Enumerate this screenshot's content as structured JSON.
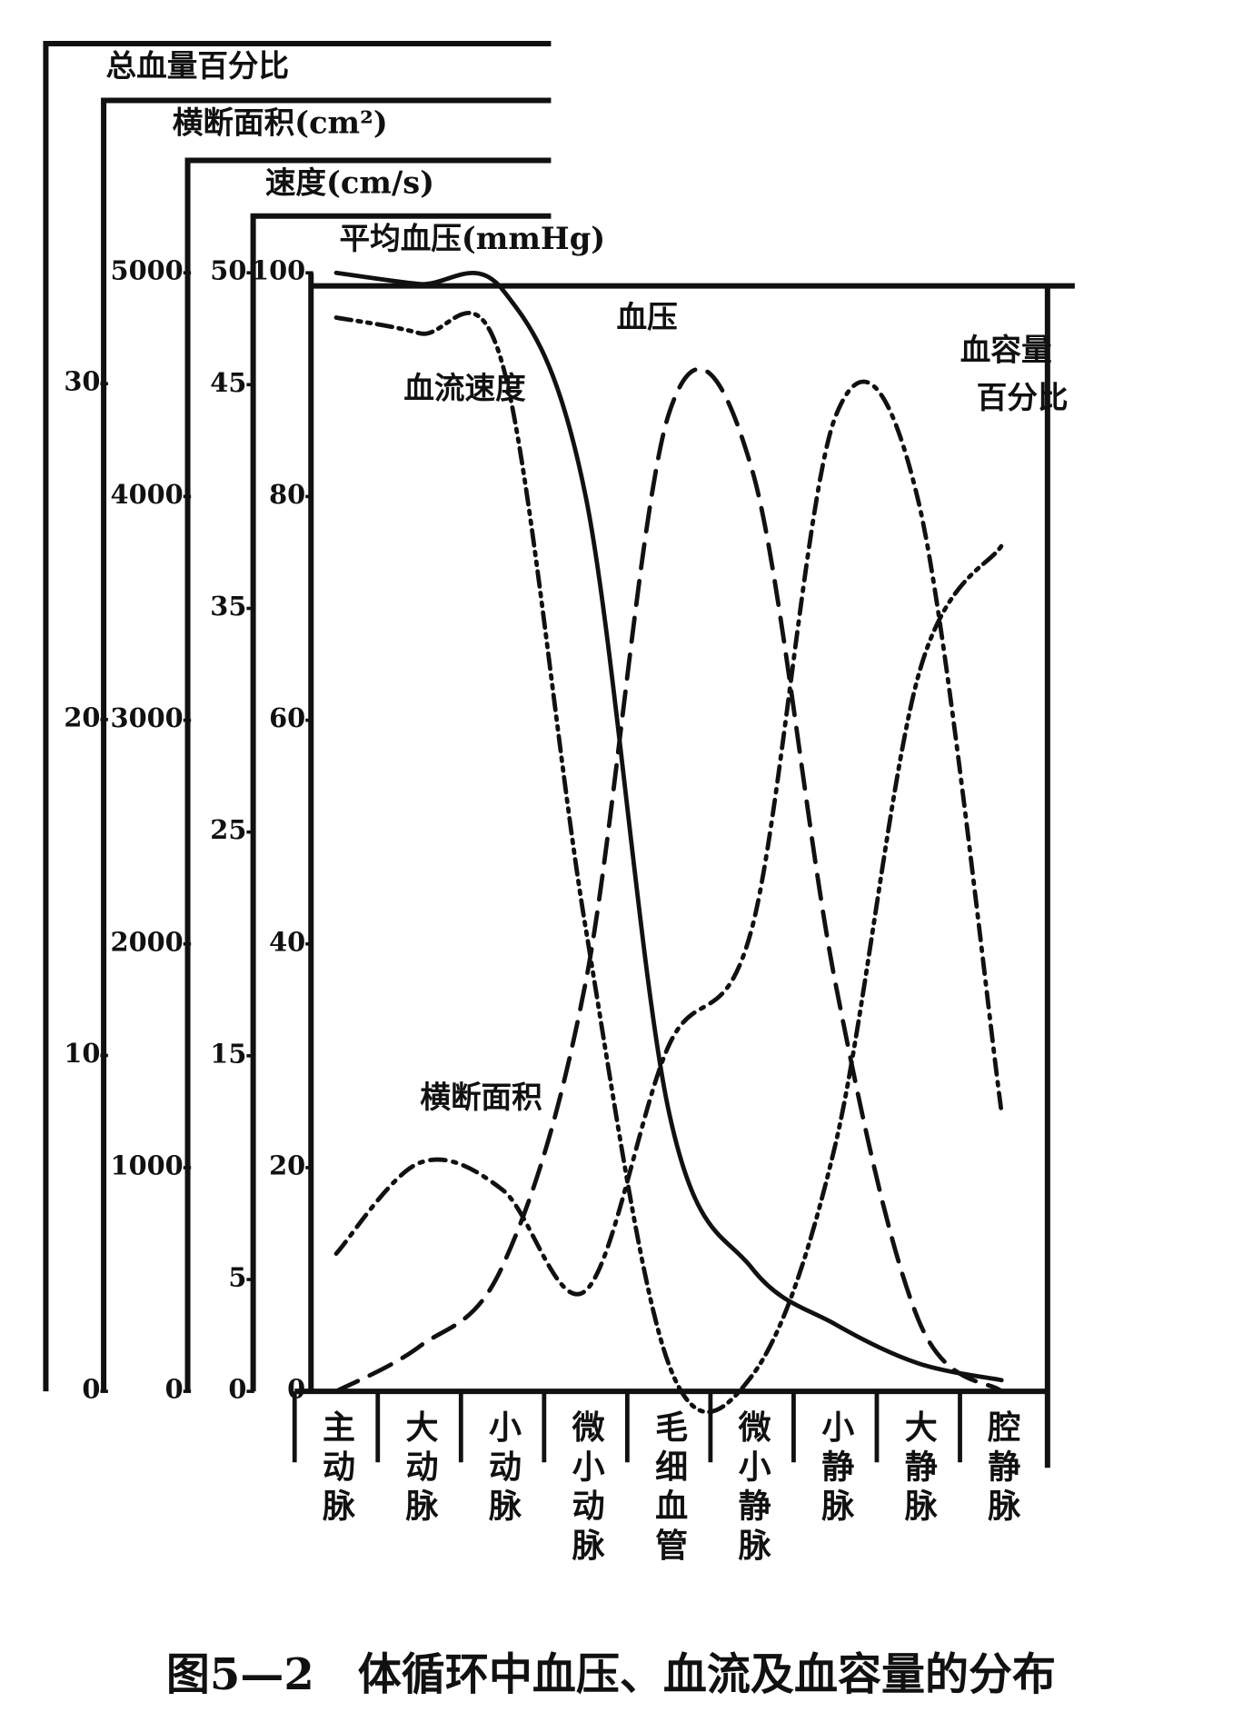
{
  "chart_data": {
    "type": "line",
    "caption": "图5—2　体循环中血压、血流及血容量的分布",
    "categories": [
      "主动脉",
      "大动脉",
      "小动脉",
      "微小动脉",
      "毛细血管",
      "微小静脉",
      "小静脉",
      "大静脉",
      "腔静脉"
    ],
    "series": [
      {
        "name": "血容量百分比",
        "axis_title": "总血量百分比",
        "color": "#111111",
        "linestyle": "dashdot",
        "ylim": [
          0,
          33.3
        ],
        "yticks": [
          0,
          10,
          20,
          30
        ],
        "values": [
          4.1,
          6.8,
          6.0,
          3.0,
          10.3,
          13.8,
          29,
          26.5,
          8.3
        ]
      },
      {
        "name": "横断面积",
        "axis_title": "横断面积(cm²)",
        "color": "#111111",
        "linestyle": "dashed",
        "ylim": [
          0,
          5000
        ],
        "yticks": [
          0,
          1000,
          2000,
          3000,
          4000,
          5000
        ],
        "values": [
          0,
          200,
          560,
          1830,
          4370,
          4120,
          1830,
          320,
          0
        ]
      },
      {
        "name": "血流速度",
        "axis_title": "速度(cm/s)",
        "color": "#111111",
        "linestyle": "dashdotdot",
        "ylim": [
          0,
          50
        ],
        "yticks": [
          0,
          5,
          15,
          25,
          35,
          45,
          50
        ],
        "values": [
          48,
          47.3,
          45.9,
          20.7,
          1.2,
          0.7,
          11,
          32,
          37.8
        ]
      },
      {
        "name": "血压",
        "axis_title": "平均血压(mmHg)",
        "color": "#111111",
        "linestyle": "solid",
        "ylim": [
          0,
          100
        ],
        "yticks": [
          0,
          20,
          40,
          60,
          80,
          100
        ],
        "values": [
          100,
          99,
          98.5,
          80,
          25,
          11,
          6,
          2.5,
          1
        ]
      }
    ]
  }
}
